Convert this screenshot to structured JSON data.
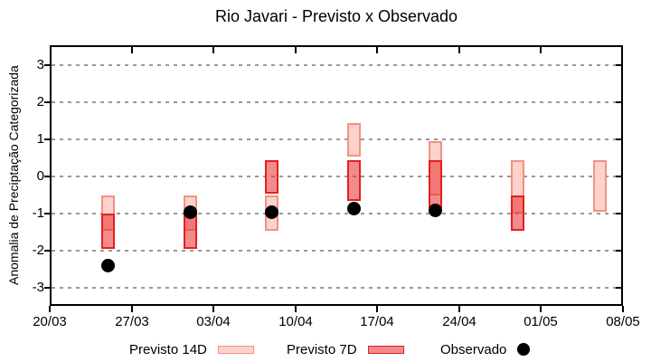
{
  "title": "Rio Javari - Previsto x Observado",
  "y_axis": {
    "label": "Anomalia de Preciptação Categorizada",
    "ticks": [
      "3",
      "2",
      "1",
      "0",
      "-1",
      "-2",
      "-3"
    ],
    "tick_values": [
      3,
      2,
      1,
      0,
      -1,
      -2,
      -3
    ]
  },
  "x_axis": {
    "ticks": [
      "20/03",
      "27/03",
      "03/04",
      "10/04",
      "17/04",
      "24/04",
      "01/05",
      "08/05"
    ]
  },
  "legend": {
    "items": [
      {
        "label": "Previsto 14D",
        "swatch": "light-pink-box"
      },
      {
        "label": "Previsto 7D",
        "swatch": "red-box"
      },
      {
        "label": "Observado",
        "swatch": "black-dot"
      }
    ]
  },
  "colors": {
    "previsto14_fill": "#fcd2cb",
    "previsto14_border": "#f09283",
    "previsto7_fill": "rgba(231,46,46,0.55)",
    "previsto7_border": "#e42020",
    "previsto7_legend_fill": "#f28c8c",
    "observado": "#000000",
    "grid": "#999999",
    "axis": "#000000"
  },
  "chart_data": {
    "type": "bar",
    "subtype": "interval-range-bars-with-points",
    "title": "Rio Javari - Previsto x Observado",
    "xlabel": "",
    "ylabel": "Anomalia de Preciptação Categorizada",
    "ylim": [
      -3.5,
      3.5
    ],
    "y_ticks": [
      3,
      2,
      1,
      0,
      -1,
      -2,
      -3
    ],
    "x_range": [
      "20/03",
      "08/05"
    ],
    "x_tick_labels": [
      "20/03",
      "27/03",
      "03/04",
      "10/04",
      "17/04",
      "24/04",
      "01/05",
      "08/05"
    ],
    "grid": "horizontal-dashed",
    "legend_position": "bottom",
    "series": [
      {
        "name": "Previsto 14D",
        "type": "range-bar",
        "points": [
          {
            "date": "25/03",
            "low": -1.45,
            "high": -0.5
          },
          {
            "date": "01/04",
            "low": -1.45,
            "high": -0.5
          },
          {
            "date": "08/04",
            "low": -1.45,
            "high": -0.5
          },
          {
            "date": "15/04",
            "low": 0.55,
            "high": 1.45
          },
          {
            "date": "22/04",
            "low": -0.5,
            "high": 0.95
          },
          {
            "date": "29/04",
            "low": -1.0,
            "high": 0.45
          },
          {
            "date": "06/05",
            "low": -0.95,
            "high": 0.45
          }
        ]
      },
      {
        "name": "Previsto 7D",
        "type": "range-bar",
        "points": [
          {
            "date": "25/03",
            "low": -1.95,
            "high": -1.0
          },
          {
            "date": "01/04",
            "low": -1.95,
            "high": -1.0
          },
          {
            "date": "08/04",
            "low": -0.45,
            "high": 0.45
          },
          {
            "date": "15/04",
            "low": -0.65,
            "high": 0.45
          },
          {
            "date": "22/04",
            "low": -0.85,
            "high": 0.45
          },
          {
            "date": "29/04",
            "low": -1.45,
            "high": -0.5
          }
        ]
      },
      {
        "name": "Observado",
        "type": "point",
        "points": [
          {
            "date": "25/03",
            "value": -2.4
          },
          {
            "date": "01/04",
            "value": -0.95
          },
          {
            "date": "08/04",
            "value": -0.95
          },
          {
            "date": "15/04",
            "value": -0.85
          },
          {
            "date": "22/04",
            "value": -0.9
          }
        ]
      }
    ]
  }
}
